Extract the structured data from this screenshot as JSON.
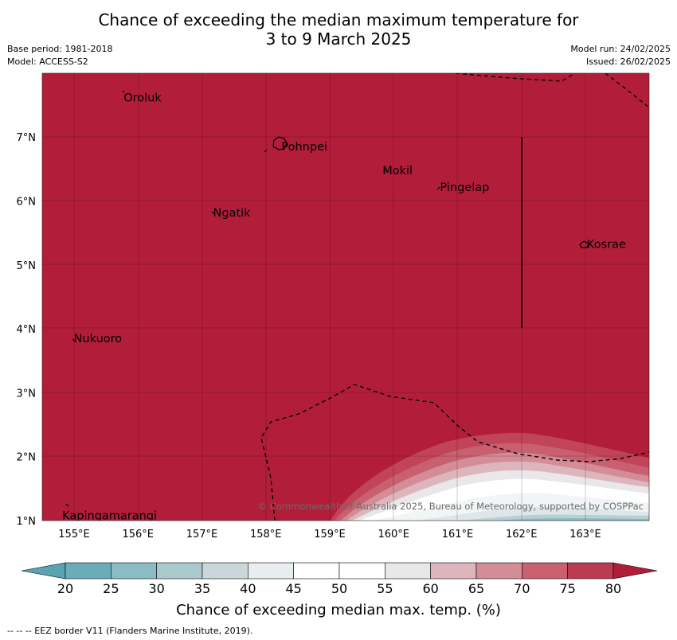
{
  "title_line1": "Chance of exceeding the median maximum temperature for",
  "title_line2": "3 to 9 March 2025",
  "base_period": "Base period: 1981-2018",
  "model": "Model: ACCESS-S2",
  "model_run": "Model run: 24/02/2025",
  "issued": "Issued: 26/02/2025",
  "lat_ticks": [
    "1°N",
    "2°N",
    "3°N",
    "4°N",
    "5°N",
    "6°N",
    "7°N"
  ],
  "lon_ticks": [
    "155°E",
    "156°E",
    "157°E",
    "158°E",
    "159°E",
    "160°E",
    "161°E",
    "162°E",
    "163°E"
  ],
  "places": [
    {
      "name": "Oroluk",
      "lon": 155.75,
      "lat": 7.62
    },
    {
      "name": "Pohnpei",
      "lon": 158.22,
      "lat": 6.85
    },
    {
      "name": "Mokil",
      "lon": 159.8,
      "lat": 6.48
    },
    {
      "name": "Pingelap",
      "lon": 160.7,
      "lat": 6.22
    },
    {
      "name": "Ngatik",
      "lon": 157.15,
      "lat": 5.82
    },
    {
      "name": "Kosrae",
      "lon": 163.0,
      "lat": 5.33
    },
    {
      "name": "Nukuoro",
      "lon": 154.97,
      "lat": 3.85
    },
    {
      "name": "Kapingamarangi",
      "lon": 154.79,
      "lat": 1.08
    }
  ],
  "copyright": "© Commonwealth of Australia 2025, Bureau of Meteorology, supported by COSPPac",
  "colorbar": {
    "ticks": [
      "20",
      "25",
      "30",
      "35",
      "40",
      "45",
      "50",
      "55",
      "60",
      "65",
      "70",
      "75",
      "80"
    ],
    "colors": [
      "#6aadba",
      "#8bbcc6",
      "#aac9cd",
      "#c9d6da",
      "#e8eef0",
      "#ffffff",
      "#ffffff",
      "#e9e7e9",
      "#ddb5bd",
      "#d48c96",
      "#c86070",
      "#bb3b52"
    ],
    "under_color": "#5aa4b2",
    "over_color": "#b11c38",
    "label": "Chance of exceeding median max. temp. (%)"
  },
  "map_fill_color": "#b21e3a",
  "footer": "--  --  -- EEZ border V11 (Flanders Marine Institute, 2019)."
}
